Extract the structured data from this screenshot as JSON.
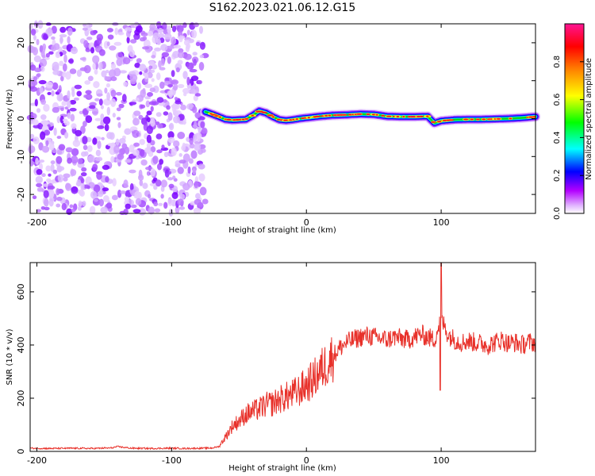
{
  "figure_title": "S162.2023.021.06.12.G15",
  "chart_data": [
    {
      "type": "heatmap",
      "title": "S162.2023.021.06.12.G15",
      "xlabel": "Height of straight line (km)",
      "ylabel": "Frequency (Hz)",
      "xlim": [
        -205,
        170
      ],
      "ylim": [
        -25,
        25
      ],
      "x_ticks": [
        -200,
        -100,
        0,
        100
      ],
      "y_ticks": [
        -20,
        -10,
        0,
        10,
        20
      ],
      "grid": false,
      "noise_region_x": [
        -205,
        -75
      ],
      "signal_region_x": [
        -75,
        170
      ],
      "signal_ridge": {
        "x": [
          -75,
          -70,
          -65,
          -60,
          -55,
          -50,
          -45,
          -40,
          -35,
          -30,
          -25,
          -20,
          -15,
          -10,
          -5,
          0,
          5,
          10,
          20,
          30,
          40,
          50,
          60,
          70,
          80,
          90,
          95,
          100,
          110,
          120,
          130,
          140,
          150,
          160,
          170
        ],
        "y": [
          1.8,
          1.2,
          0.5,
          -0.2,
          -0.4,
          -0.3,
          -0.2,
          0.8,
          2.0,
          1.5,
          0.5,
          -0.3,
          -0.5,
          -0.3,
          0,
          0.2,
          0.4,
          0.6,
          0.9,
          1.0,
          1.2,
          1.1,
          0.6,
          0.5,
          0.5,
          0.6,
          -1.2,
          -0.6,
          -0.3,
          -0.2,
          -0.2,
          -0.1,
          0,
          0.2,
          0.5
        ]
      },
      "colorbar": {
        "label": "Normalized spectral amplitude",
        "range": [
          0,
          1
        ],
        "ticks": [
          0.0,
          0.2,
          0.4,
          0.6,
          0.8
        ],
        "tick_labels": [
          "0.0",
          "0.2",
          "0.4",
          "0.6",
          "0.8"
        ],
        "colors": [
          "#ffffff",
          "#cc33ff",
          "#0000ff",
          "#00ffff",
          "#00ff00",
          "#ffff00",
          "#ff7f00",
          "#ff0000",
          "#ff1493"
        ]
      }
    },
    {
      "type": "line",
      "xlabel": "Height of straight line (km)",
      "ylabel": "SNR (10 * v/v)",
      "xlim": [
        -205,
        170
      ],
      "ylim": [
        0,
        710
      ],
      "x_ticks": [
        -200,
        -100,
        0,
        100
      ],
      "y_ticks": [
        0,
        200,
        400,
        600
      ],
      "grid": false,
      "color": "#e8312a",
      "series": [
        {
          "x": [
            -205,
            -190,
            -175,
            -160,
            -145,
            -140,
            -130,
            -115,
            -100,
            -90,
            -80,
            -75,
            -70,
            -65,
            -60,
            -55,
            -50,
            -45,
            -40,
            -35,
            -30,
            -25,
            -20,
            -15,
            -10,
            -5,
            0,
            5,
            10,
            15,
            20,
            25,
            30,
            35,
            40,
            45,
            50,
            55,
            60,
            65,
            70,
            75,
            80,
            85,
            90,
            95,
            100,
            105,
            110,
            115,
            120,
            125,
            130,
            135,
            140,
            145,
            150,
            155,
            160,
            165,
            170
          ],
          "y": [
            12,
            11,
            12,
            11,
            13,
            18,
            12,
            11,
            12,
            11,
            12,
            12,
            13,
            18,
            55,
            95,
            115,
            140,
            150,
            160,
            175,
            180,
            195,
            205,
            215,
            230,
            250,
            270,
            300,
            330,
            360,
            390,
            410,
            420,
            430,
            435,
            430,
            425,
            420,
            430,
            425,
            420,
            430,
            440,
            430,
            420,
            500,
            440,
            420,
            410,
            415,
            410,
            405,
            400,
            410,
            420,
            405,
            410,
            400,
            410,
            410
          ]
        }
      ],
      "peaks": [
        {
          "x": 100,
          "y": 710
        },
        {
          "x": 100,
          "y": 230
        }
      ]
    }
  ]
}
